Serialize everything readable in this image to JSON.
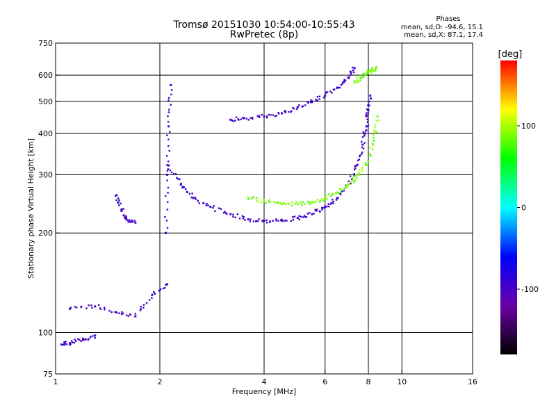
{
  "chart_data": {
    "type": "scatter",
    "title": "Tromsø 20151030 10:54:00-10:55:43",
    "subtitle": "RwPretec (8p)",
    "xlabel": "Frequency [MHz]",
    "ylabel": "Stationary phase Virtual Height [km]",
    "x_scale": "log",
    "y_scale": "log",
    "xlim": [
      1,
      16
    ],
    "ylim": [
      75,
      750
    ],
    "x_ticks": [
      1,
      2,
      4,
      6,
      8,
      10,
      16
    ],
    "x_tick_labels": [
      "1",
      "2",
      "4",
      "6",
      "8",
      "10",
      "16"
    ],
    "y_ticks": [
      75,
      100,
      200,
      300,
      400,
      500,
      600,
      750
    ],
    "y_tick_labels": [
      "75",
      "100",
      "200",
      "300",
      "400",
      "500",
      "600",
      "750"
    ],
    "grid": true,
    "colorbar": {
      "label": "[deg]",
      "range": [
        -180,
        180
      ],
      "ticks": [
        100,
        0,
        -100
      ],
      "tick_labels": [
        "100",
        "0",
        "-100"
      ],
      "colors": [
        "#000000",
        "#6a00a8",
        "#0000ff",
        "#00ffff",
        "#00ff00",
        "#ffff00",
        "#ff0000"
      ]
    },
    "phase_stats": {
      "title": "Phases",
      "o_line": "mean, sd,O: -94.6, 15.1",
      "x_line": "mean, sd,X:  87.1, 17.4"
    },
    "series": [
      {
        "mode": "O",
        "color_phase": -95,
        "segments": [
          {
            "x": [
              2.12,
              2.3,
              2.5,
              2.8,
              3.2,
              3.6,
              4.0,
              4.5,
              5.0,
              5.5,
              6.0,
              6.5,
              7.0,
              7.4,
              7.7,
              7.9,
              8.0,
              8.1
            ],
            "y": [
              320,
              280,
              255,
              240,
              228,
              220,
              218,
              218,
              222,
              228,
              240,
              255,
              280,
              320,
              370,
              420,
              470,
              520
            ]
          },
          {
            "x": [
              2.08,
              2.1,
              2.12,
              2.15
            ],
            "y": [
              200,
              300,
              420,
              560
            ]
          },
          {
            "x": [
              3.2,
              3.5,
              4.0,
              4.5,
              5.0,
              5.5,
              6.0,
              6.5,
              7.0,
              7.3
            ],
            "y": [
              440,
              445,
              450,
              460,
              480,
              500,
              520,
              550,
              590,
              630
            ]
          },
          {
            "x": [
              1.5,
              1.55,
              1.6,
              1.7
            ],
            "y": [
              260,
              235,
              220,
              215
            ]
          },
          {
            "x": [
              1.04,
              1.1,
              1.2,
              1.3
            ],
            "y": [
              92,
              93,
              95,
              98
            ]
          },
          {
            "x": [
              1.1,
              1.3,
              1.5,
              1.7,
              1.9,
              2.1
            ],
            "y": [
              118,
              120,
              115,
              112,
              130,
              140
            ]
          }
        ]
      },
      {
        "mode": "X",
        "color_phase": 87,
        "segments": [
          {
            "x": [
              3.6,
              4.0,
              4.5,
              5.0,
              5.5,
              6.0,
              6.5,
              7.0,
              7.5,
              8.0,
              8.3,
              8.5
            ],
            "y": [
              255,
              250,
              245,
              245,
              248,
              255,
              265,
              280,
              300,
              330,
              380,
              450
            ]
          },
          {
            "x": [
              7.3,
              7.6,
              8.0,
              8.2,
              8.4
            ],
            "y": [
              570,
              590,
              610,
              620,
              630
            ]
          }
        ]
      }
    ]
  }
}
